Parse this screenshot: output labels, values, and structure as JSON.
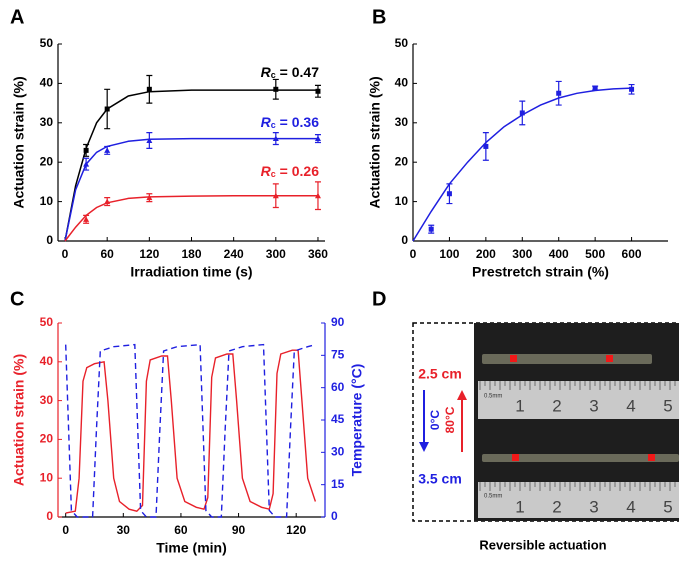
{
  "chart_data": [
    {
      "type": "scatter",
      "panel": "A",
      "xlabel": "Irradiation time (s)",
      "ylabel": "Actuation strain (%)",
      "xlim": [
        -10,
        370
      ],
      "ylim": [
        0,
        50
      ],
      "xticks": [
        0,
        60,
        120,
        180,
        240,
        300,
        360
      ],
      "yticks": [
        0,
        10,
        20,
        30,
        40,
        50
      ],
      "series": [
        {
          "color": "#000000",
          "marker": "square",
          "annotation": {
            "symbol": "R",
            "subscript": "c",
            "text": " = 0.47"
          },
          "x": [
            30,
            60,
            120,
            300,
            360
          ],
          "values": [
            23,
            33.5,
            38.5,
            38.5,
            38
          ],
          "errors": [
            1.5,
            5,
            3.5,
            2.5,
            1.5
          ],
          "fit": {
            "x": [
              0,
              15,
              30,
              45,
              60,
              90,
              120,
              180,
              240,
              300,
              360
            ],
            "values": [
              0,
              14,
              23.5,
              30,
              33.5,
              36.8,
              37.9,
              38.3,
              38.3,
              38.3,
              38.3
            ]
          }
        },
        {
          "color": "#1f1fe0",
          "marker": "triangle",
          "annotation": {
            "symbol": "R",
            "subscript": "c",
            "text": " = 0.36"
          },
          "x": [
            30,
            60,
            120,
            300,
            360
          ],
          "values": [
            19.5,
            23,
            25.5,
            26,
            26
          ],
          "errors": [
            1.5,
            1,
            2,
            1.5,
            1
          ],
          "fit": {
            "x": [
              0,
              15,
              30,
              45,
              60,
              90,
              120,
              180,
              240,
              300,
              360
            ],
            "values": [
              0,
              13,
              19.5,
              22.5,
              24,
              25.3,
              25.8,
              26,
              26,
              26,
              26
            ]
          }
        },
        {
          "color": "#e8212a",
          "marker": "triangle",
          "annotation": {
            "symbol": "R",
            "subscript": "c",
            "text": " = 0.26"
          },
          "x": [
            30,
            60,
            120,
            300,
            360
          ],
          "values": [
            5.5,
            10,
            11,
            11.5,
            11.5
          ],
          "errors": [
            1,
            1,
            1,
            3,
            3.5
          ],
          "fit": {
            "x": [
              0,
              15,
              30,
              45,
              60,
              90,
              120,
              180,
              240,
              300,
              360
            ],
            "values": [
              0,
              3.5,
              6.5,
              8.5,
              9.7,
              10.8,
              11.2,
              11.4,
              11.5,
              11.5,
              11.5
            ]
          }
        }
      ]
    },
    {
      "type": "scatter",
      "panel": "B",
      "xlabel": "Prestretch strain (%)",
      "ylabel": "Actuation strain (%)",
      "xlim": [
        0,
        700
      ],
      "ylim": [
        0,
        50
      ],
      "xticks": [
        0,
        100,
        200,
        300,
        400,
        500,
        600
      ],
      "yticks": [
        0,
        10,
        20,
        30,
        40,
        50
      ],
      "series": [
        {
          "color": "#1f1fe0",
          "marker": "square",
          "x": [
            50,
            100,
            200,
            300,
            400,
            500,
            600
          ],
          "values": [
            3,
            12,
            24,
            32.5,
            37.5,
            38.8,
            38.5
          ],
          "errors": [
            1,
            2.5,
            3.5,
            3,
            3,
            0.5,
            1.2
          ],
          "fit": {
            "x": [
              0,
              50,
              100,
              150,
              200,
              250,
              300,
              350,
              400,
              450,
              500,
              550,
              600
            ],
            "values": [
              0,
              7.5,
              14.5,
              20,
              25,
              29,
              32,
              34.5,
              36.3,
              37.5,
              38.2,
              38.6,
              38.8
            ]
          }
        }
      ]
    },
    {
      "type": "line",
      "panel": "C",
      "xlabel": "Time (min)",
      "ylabel": "Actuation strain (%)",
      "y2label": "Temperature (°C)",
      "xlim": [
        -4,
        135
      ],
      "ylim": [
        0,
        50
      ],
      "y2lim": [
        0,
        90
      ],
      "xticks": [
        0,
        30,
        60,
        90,
        120
      ],
      "yticks": [
        0,
        10,
        20,
        30,
        40,
        50
      ],
      "y2ticks": [
        0,
        15,
        30,
        45,
        60,
        75,
        90
      ],
      "ycolor": "#e8212a",
      "y2color": "#1f1fe0",
      "series": [
        {
          "color": "#e8212a",
          "dash": false,
          "x": [
            0,
            5,
            7,
            9,
            11,
            15,
            20,
            22,
            25,
            28,
            33,
            37,
            40,
            42,
            44,
            50,
            53,
            55,
            58,
            62,
            68,
            72,
            74,
            76,
            78,
            84,
            87,
            89,
            92,
            96,
            102,
            106,
            108,
            110,
            112,
            118,
            121,
            123,
            126,
            130
          ],
          "values": [
            1,
            1.5,
            10,
            35,
            38.5,
            39.5,
            40,
            30,
            10,
            4,
            2,
            1.5,
            3,
            35,
            40.5,
            41.5,
            41.5,
            30,
            10,
            4,
            2.5,
            2,
            5,
            36,
            41,
            42,
            42,
            30,
            10,
            4,
            2.5,
            2,
            6,
            37,
            42,
            43,
            43,
            30,
            10,
            4
          ]
        },
        {
          "color": "#1f1fe0",
          "dash": true,
          "axis": "y2",
          "x": [
            0,
            3,
            6,
            14,
            16,
            18,
            25,
            36,
            39,
            42,
            47,
            49,
            51,
            58,
            70,
            73,
            76,
            81,
            83,
            85,
            92,
            103,
            106,
            109,
            115,
            117,
            119,
            126,
            130
          ],
          "values": [
            80,
            3,
            0,
            0,
            40,
            77,
            79,
            80,
            3,
            0,
            0,
            40,
            77,
            79,
            80,
            3,
            0,
            0,
            40,
            77,
            79,
            80,
            3,
            0,
            0,
            40,
            77,
            79,
            80
          ]
        }
      ]
    }
  ],
  "panel_d": {
    "panel": "D",
    "top_label": "2.5 cm",
    "bottom_label": "3.5 cm",
    "cool": "0°C",
    "heat": "80°C",
    "caption": "Reversible actuation",
    "ruler_unit": "0.5mm",
    "ruler_labels": [
      "1",
      "2",
      "3",
      "4",
      "5"
    ]
  }
}
